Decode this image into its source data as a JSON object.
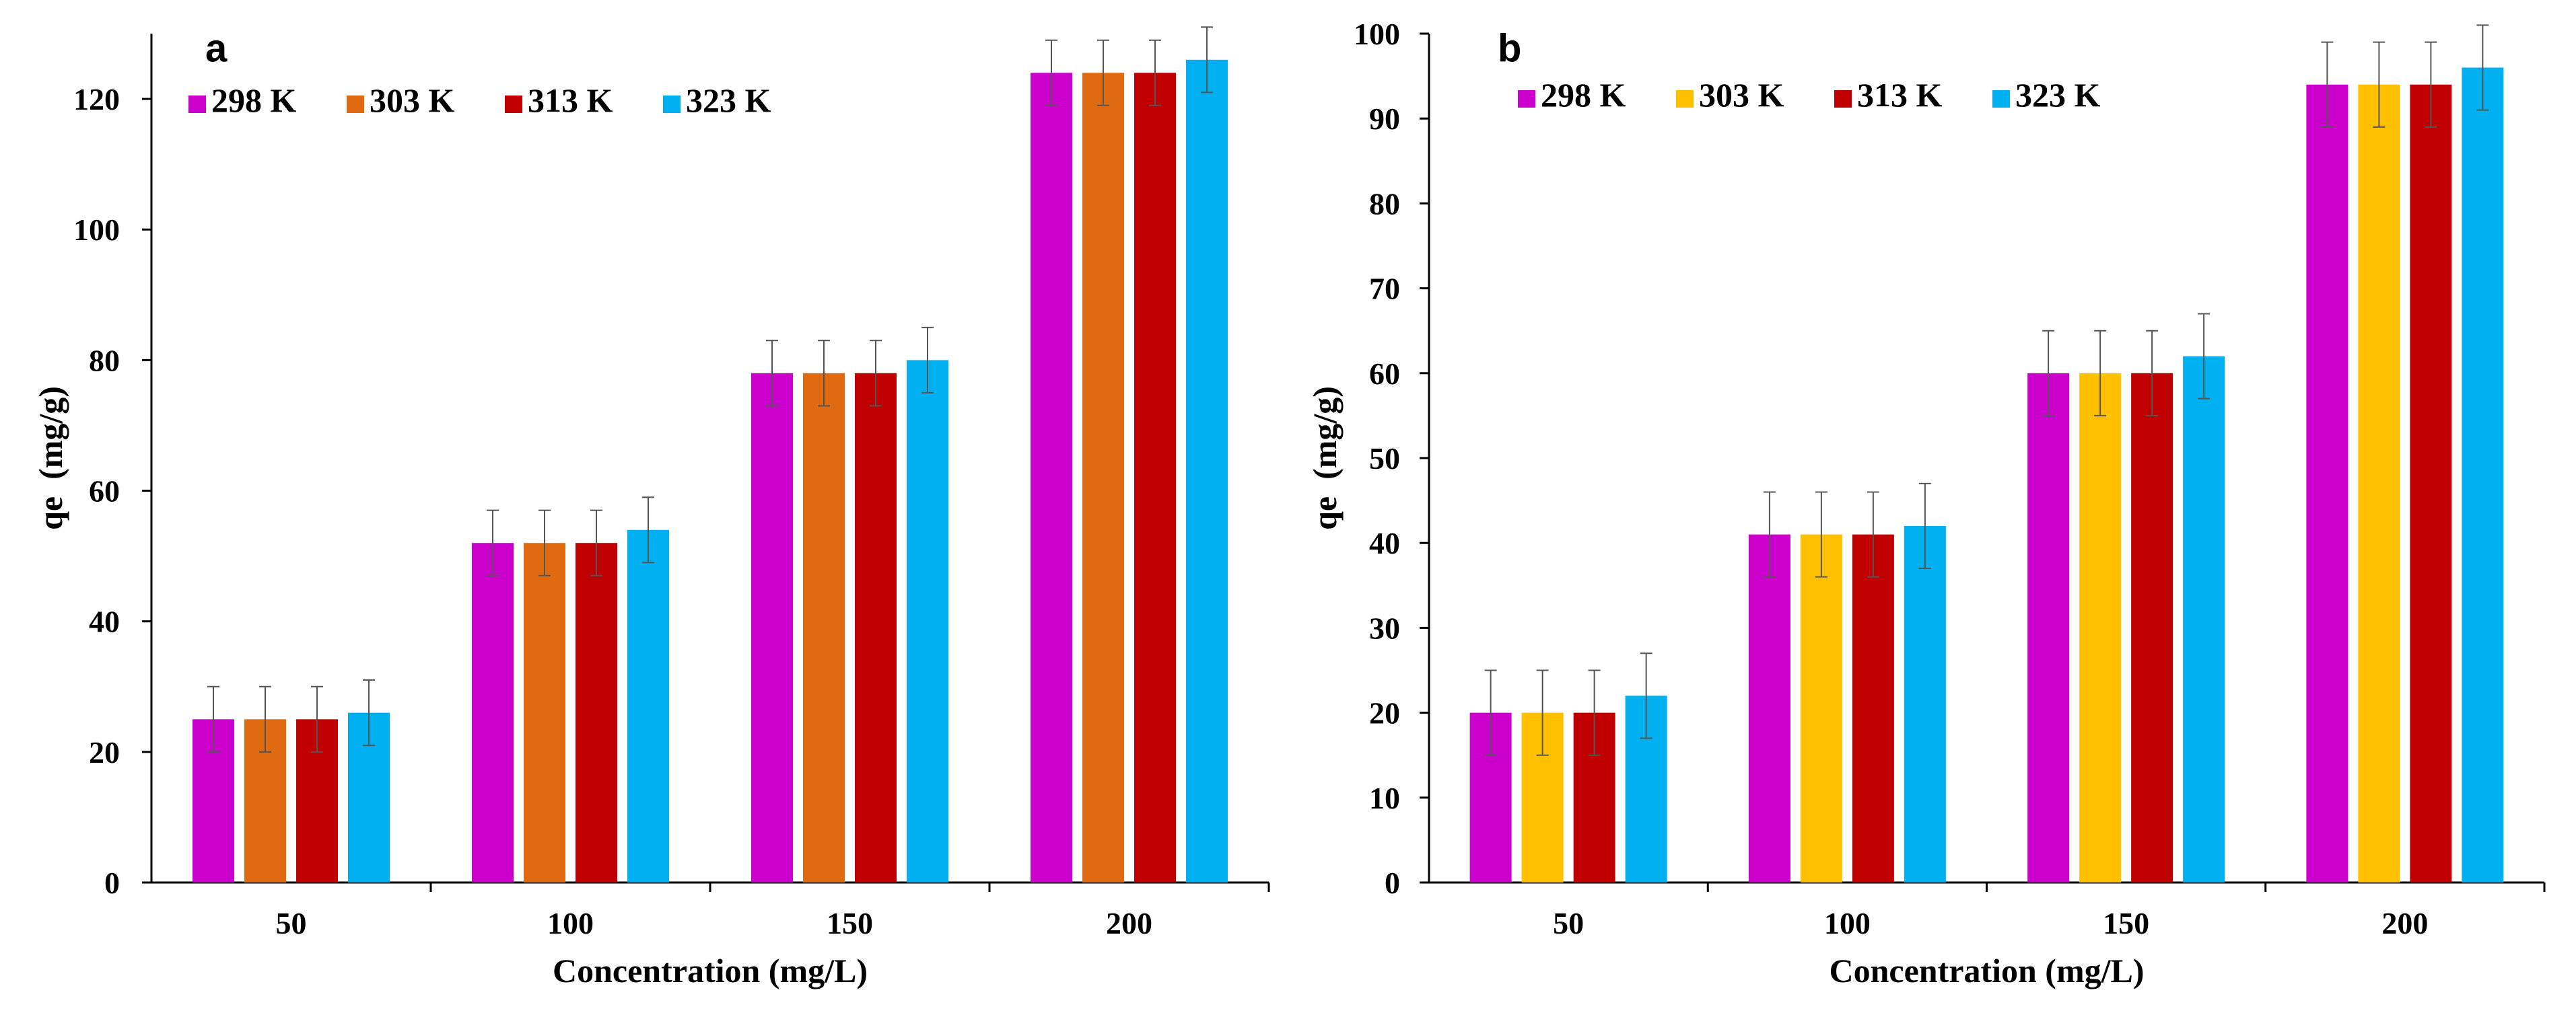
{
  "chart_data": [
    {
      "type": "bar",
      "panel_label": "a",
      "title": "",
      "xlabel": "Concentration (mg/L)",
      "ylabel": "qe  (mg/g)",
      "categories": [
        "50",
        "100",
        "150",
        "200"
      ],
      "ylim": [
        0,
        130
      ],
      "yticks": [
        0,
        20,
        40,
        60,
        80,
        100,
        120
      ],
      "legend_position": "top-left",
      "grid": false,
      "error_bars": true,
      "series": [
        {
          "name": "298 K",
          "color": "#CC00CC",
          "values": [
            25,
            52,
            78,
            124
          ],
          "errors": [
            5,
            5,
            5,
            5
          ]
        },
        {
          "name": "303 K",
          "color": "#E06A10",
          "values": [
            25,
            52,
            78,
            124
          ],
          "errors": [
            5,
            5,
            5,
            5
          ]
        },
        {
          "name": "313 K",
          "color": "#C00000",
          "values": [
            25,
            52,
            78,
            124
          ],
          "errors": [
            5,
            5,
            5,
            5
          ]
        },
        {
          "name": "323 K",
          "color": "#00B0F0",
          "values": [
            26,
            54,
            80,
            126
          ],
          "errors": [
            5,
            5,
            5,
            5
          ]
        }
      ]
    },
    {
      "type": "bar",
      "panel_label": "b",
      "title": "",
      "xlabel": "Concentration (mg/L)",
      "ylabel": "qe  (mg/g)",
      "categories": [
        "50",
        "100",
        "150",
        "200"
      ],
      "ylim": [
        0,
        100
      ],
      "yticks": [
        0,
        10,
        20,
        30,
        40,
        50,
        60,
        70,
        80,
        90,
        100
      ],
      "legend_position": "top-left",
      "grid": false,
      "error_bars": true,
      "series": [
        {
          "name": "298 K",
          "color": "#CC00CC",
          "values": [
            20,
            41,
            60,
            94
          ],
          "errors": [
            5,
            5,
            5,
            5
          ]
        },
        {
          "name": "303 K",
          "color": "#FFC000",
          "values": [
            20,
            41,
            60,
            94
          ],
          "errors": [
            5,
            5,
            5,
            5
          ]
        },
        {
          "name": "313 K",
          "color": "#C00000",
          "values": [
            20,
            41,
            60,
            94
          ],
          "errors": [
            5,
            5,
            5,
            5
          ]
        },
        {
          "name": "323 K",
          "color": "#00B0F0",
          "values": [
            22,
            42,
            62,
            96
          ],
          "errors": [
            5,
            5,
            5,
            5
          ]
        }
      ]
    }
  ]
}
